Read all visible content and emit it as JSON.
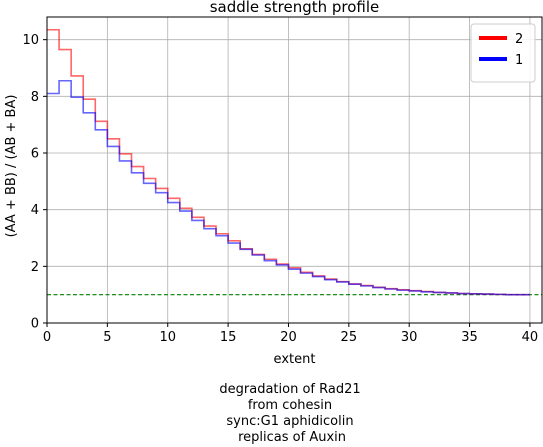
{
  "chart_data": {
    "type": "line",
    "drawstyle": "steps-post",
    "title": "saddle strength profile",
    "xlabel": "extent",
    "ylabel": "(AA + BB) / (AB + BA)",
    "xlim": [
      0,
      41
    ],
    "ylim": [
      0,
      10.8
    ],
    "xticks": [
      0,
      5,
      10,
      15,
      20,
      25,
      30,
      35,
      40
    ],
    "yticks": [
      0,
      2,
      4,
      6,
      8,
      10
    ],
    "grid": true,
    "legend": "top-right",
    "reference_line": {
      "y": 1.0,
      "color": "#008000",
      "style": "dashed"
    },
    "series": [
      {
        "name": "2",
        "color": "#ff0000",
        "x": [
          0,
          1,
          2,
          3,
          4,
          5,
          6,
          7,
          8,
          9,
          10,
          11,
          12,
          13,
          14,
          15,
          16,
          17,
          18,
          19,
          20,
          21,
          22,
          23,
          24,
          25,
          26,
          27,
          28,
          29,
          30,
          31,
          32,
          33,
          34,
          35,
          36,
          37,
          38,
          39
        ],
        "values": [
          10.35,
          9.65,
          8.72,
          7.9,
          7.12,
          6.5,
          5.97,
          5.52,
          5.1,
          4.75,
          4.4,
          4.05,
          3.73,
          3.42,
          3.15,
          2.9,
          2.62,
          2.42,
          2.25,
          2.08,
          1.95,
          1.79,
          1.66,
          1.55,
          1.46,
          1.38,
          1.32,
          1.26,
          1.21,
          1.17,
          1.14,
          1.11,
          1.08,
          1.06,
          1.04,
          1.03,
          1.02,
          1.01,
          1.0,
          1.0
        ]
      },
      {
        "name": "1",
        "color": "#0000ff",
        "x": [
          0,
          1,
          2,
          3,
          4,
          5,
          6,
          7,
          8,
          9,
          10,
          11,
          12,
          13,
          14,
          15,
          16,
          17,
          18,
          19,
          20,
          21,
          22,
          23,
          24,
          25,
          26,
          27,
          28,
          29,
          30,
          31,
          32,
          33,
          34,
          35,
          36,
          37,
          38,
          39
        ],
        "values": [
          8.1,
          8.55,
          7.97,
          7.42,
          6.82,
          6.23,
          5.72,
          5.3,
          4.93,
          4.6,
          4.25,
          3.95,
          3.62,
          3.33,
          3.08,
          2.82,
          2.6,
          2.4,
          2.2,
          2.05,
          1.9,
          1.76,
          1.64,
          1.53,
          1.45,
          1.37,
          1.31,
          1.25,
          1.2,
          1.16,
          1.13,
          1.1,
          1.08,
          1.06,
          1.04,
          1.03,
          1.02,
          1.01,
          1.0,
          1.0
        ]
      }
    ]
  },
  "caption_lines": [
    "degradation of Rad21",
    "from cohesin",
    "sync:G1 aphidicolin",
    " replicas of Auxin"
  ]
}
